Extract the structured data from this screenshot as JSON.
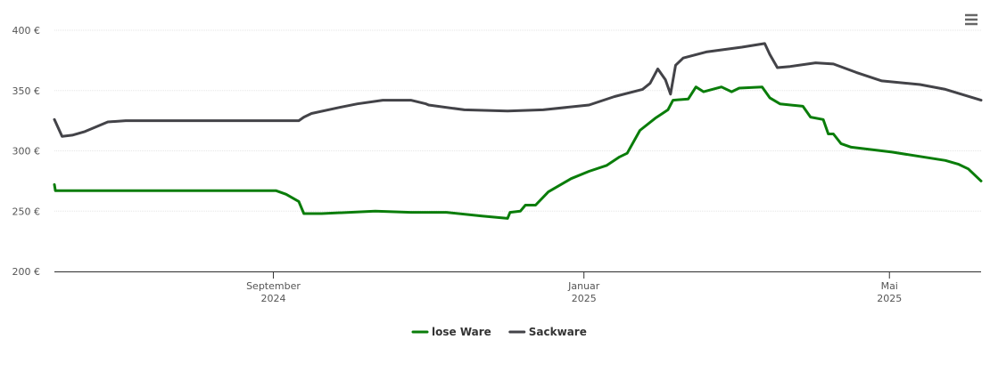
{
  "chart_data": {
    "type": "line",
    "x": [],
    "series": [
      {
        "name": "lose Ware",
        "color": "#0a7d0a",
        "x": [
          0,
          0.4,
          87,
          91,
          96,
          98,
          105,
          126,
          140,
          154,
          168,
          178,
          179,
          183,
          185,
          189,
          194,
          203,
          210,
          217,
          222,
          225,
          230,
          236,
          241,
          243,
          249,
          252,
          255,
          262,
          266,
          269,
          278,
          281,
          285,
          294,
          297,
          302,
          304,
          306,
          309,
          313,
          329,
          350,
          355,
          359,
          364
        ],
        "values": [
          272,
          267,
          267,
          264,
          258,
          248,
          248,
          250,
          249,
          249,
          246,
          244,
          249,
          250,
          255,
          255,
          266,
          277,
          283,
          288,
          295,
          298,
          317,
          327,
          334,
          342,
          343,
          353,
          349,
          353,
          349,
          352,
          353,
          344,
          339,
          337,
          328,
          326,
          314,
          314,
          306,
          303,
          299,
          292,
          289,
          285,
          275
        ]
      },
      {
        "name": "Sackware",
        "color": "#434348",
        "x": [
          0,
          3,
          7,
          12,
          21,
          28,
          96,
          98,
          101,
          112,
          119,
          129,
          140,
          146,
          147,
          161,
          178,
          192,
          210,
          220,
          231,
          234,
          237,
          240,
          242,
          244,
          247,
          256,
          270,
          279,
          281,
          284,
          289,
          299,
          306,
          315,
          325,
          340,
          350,
          364
        ],
        "values": [
          326,
          312,
          313,
          316,
          324,
          325,
          325,
          328,
          331,
          336,
          339,
          342,
          342,
          339,
          338,
          334,
          333,
          334,
          338,
          345,
          351,
          356,
          368,
          359,
          347,
          371,
          377,
          382,
          386,
          389,
          380,
          369,
          370,
          373,
          372,
          365,
          358,
          355,
          351,
          342
        ]
      }
    ],
    "xlim": [
      0,
      364
    ],
    "xticks": [
      {
        "value": 86,
        "label": [
          "September",
          "2024"
        ]
      },
      {
        "value": 208,
        "label": [
          "Januar",
          "2025"
        ]
      },
      {
        "value": 328,
        "label": [
          "Mai",
          "2025"
        ]
      }
    ],
    "ylim": [
      200,
      400
    ],
    "yticks": [
      {
        "value": 200,
        "label": "200 €"
      },
      {
        "value": 250,
        "label": "250 €"
      },
      {
        "value": 300,
        "label": "300 €"
      },
      {
        "value": 350,
        "label": "350 €"
      },
      {
        "value": 400,
        "label": "400 €"
      }
    ],
    "grid": true
  }
}
